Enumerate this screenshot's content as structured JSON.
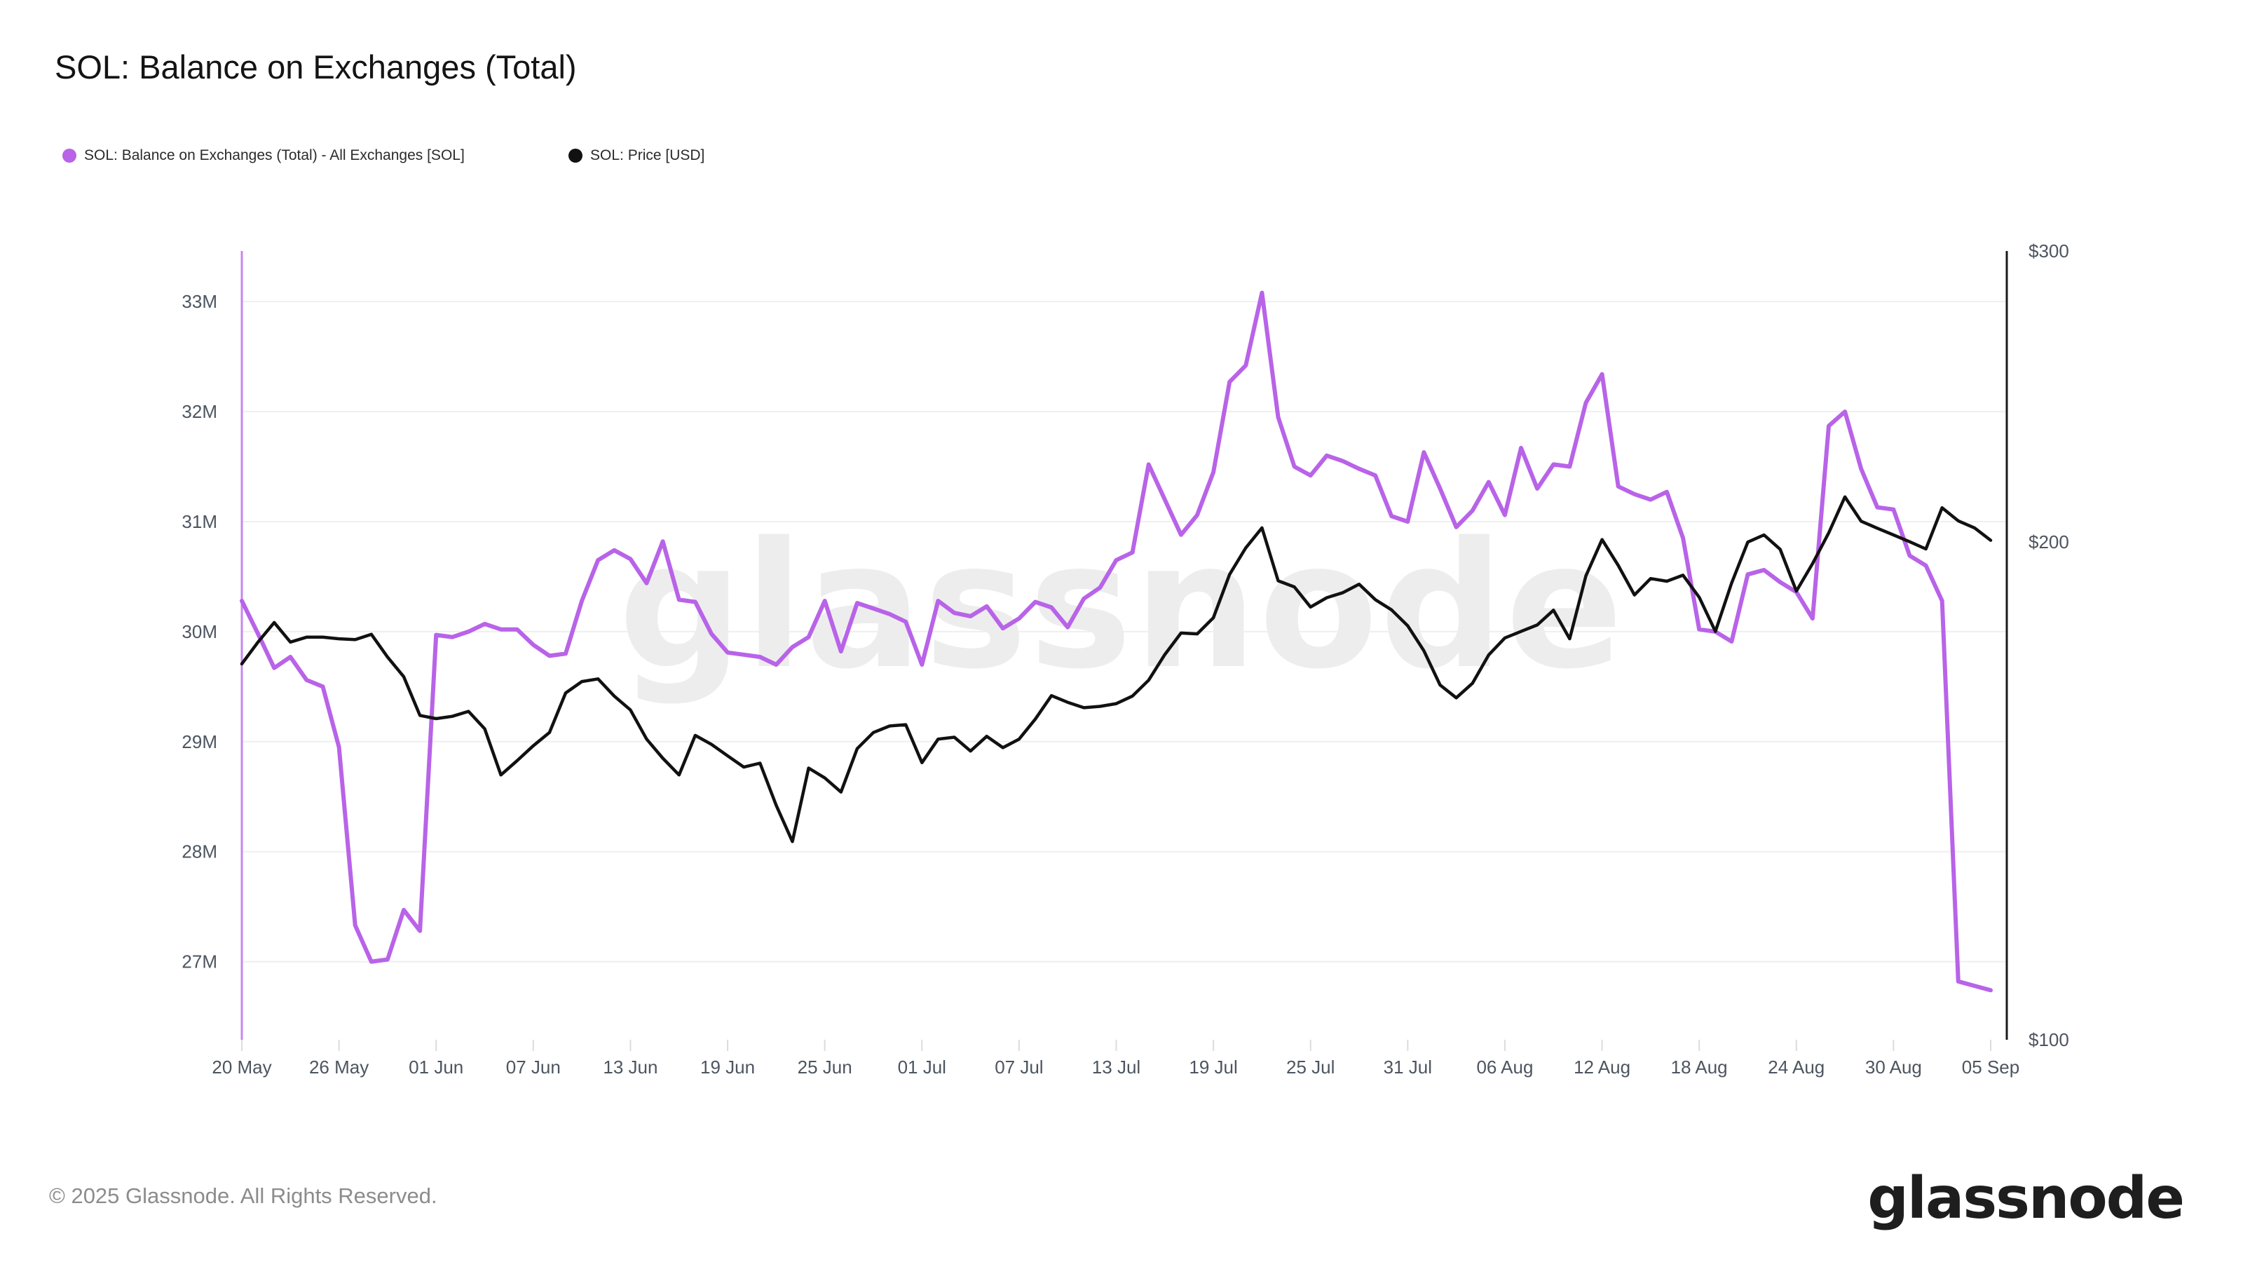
{
  "title": "SOL: Balance on Exchanges (Total)",
  "legend": {
    "items": [
      {
        "label": "SOL: Balance on Exchanges (Total) - All Exchanges [SOL]",
        "color": "#b863e8"
      },
      {
        "label": "SOL: Price [USD]",
        "color": "#111111"
      }
    ]
  },
  "watermark": "glassnode",
  "footer": {
    "copyright": "© 2025 Glassnode. All Rights Reserved.",
    "logo": "glassnode"
  },
  "colors": {
    "balance_line": "#b863e8",
    "price_line": "#111111",
    "grid": "#efefef",
    "tick": "#dcdcdc",
    "axis_text": "#4c5560",
    "watermark": "#ededed",
    "left_spine": "#c687ef",
    "right_spine": "#1a1a1a"
  },
  "chart_data": {
    "type": "line",
    "title": "SOL: Balance on Exchanges (Total)",
    "legend_position": "top-left",
    "grid": "horizontal",
    "x_axis": {
      "start_date": "2025-05-20",
      "end_date": "2025-09-05",
      "interval": "1 day",
      "total_days": 108,
      "ticks": [
        {
          "day": 0,
          "label": "20 May"
        },
        {
          "day": 6,
          "label": "26 May"
        },
        {
          "day": 12,
          "label": "01 Jun"
        },
        {
          "day": 18,
          "label": "07 Jun"
        },
        {
          "day": 24,
          "label": "13 Jun"
        },
        {
          "day": 30,
          "label": "19 Jun"
        },
        {
          "day": 36,
          "label": "25 Jun"
        },
        {
          "day": 42,
          "label": "01 Jul"
        },
        {
          "day": 48,
          "label": "07 Jul"
        },
        {
          "day": 54,
          "label": "13 Jul"
        },
        {
          "day": 60,
          "label": "19 Jul"
        },
        {
          "day": 66,
          "label": "25 Jul"
        },
        {
          "day": 72,
          "label": "31 Jul"
        },
        {
          "day": 78,
          "label": "06 Aug"
        },
        {
          "day": 84,
          "label": "12 Aug"
        },
        {
          "day": 90,
          "label": "18 Aug"
        },
        {
          "day": 96,
          "label": "24 Aug"
        },
        {
          "day": 102,
          "label": "30 Aug"
        },
        {
          "day": 108,
          "label": "05 Sep"
        }
      ]
    },
    "left_axis": {
      "scale": "linear",
      "unit": "SOL (millions)",
      "min": 26.29,
      "max": 33.46,
      "ticks": [
        {
          "value": 27,
          "label": "27M"
        },
        {
          "value": 28,
          "label": "28M"
        },
        {
          "value": 29,
          "label": "29M"
        },
        {
          "value": 30,
          "label": "30M"
        },
        {
          "value": 31,
          "label": "31M"
        },
        {
          "value": 32,
          "label": "32M"
        },
        {
          "value": 33,
          "label": "33M"
        }
      ]
    },
    "right_axis": {
      "scale": "log",
      "unit": "USD",
      "min": 100,
      "max": 300,
      "ticks": [
        {
          "value": 100,
          "label": "$100"
        },
        {
          "value": 200,
          "label": "$200"
        },
        {
          "value": 300,
          "label": "$300"
        }
      ]
    },
    "series": [
      {
        "name": "SOL: Balance on Exchanges (Total) - All Exchanges [SOL]",
        "axis": "left",
        "color": "#b863e8",
        "unit": "millions of SOL",
        "values": [
          30.28,
          29.98,
          29.67,
          29.77,
          29.56,
          29.5,
          28.95,
          27.33,
          27.0,
          27.02,
          27.47,
          27.28,
          29.97,
          29.95,
          30.0,
          30.07,
          30.02,
          30.02,
          29.88,
          29.78,
          29.8,
          30.28,
          30.65,
          30.74,
          30.66,
          30.44,
          30.82,
          30.29,
          30.27,
          29.98,
          29.81,
          29.79,
          29.77,
          29.7,
          29.86,
          29.95,
          30.28,
          29.82,
          30.26,
          30.21,
          30.16,
          30.09,
          29.7,
          30.28,
          30.17,
          30.14,
          30.23,
          30.03,
          30.12,
          30.27,
          30.22,
          30.04,
          30.3,
          30.4,
          30.65,
          30.72,
          31.52,
          31.2,
          30.88,
          31.06,
          31.45,
          32.27,
          32.42,
          33.08,
          31.95,
          31.5,
          31.42,
          31.6,
          31.55,
          31.48,
          31.42,
          31.05,
          31.0,
          31.63,
          31.3,
          30.95,
          31.1,
          31.36,
          31.06,
          31.67,
          31.3,
          31.52,
          31.5,
          32.08,
          32.34,
          31.32,
          31.25,
          31.2,
          31.27,
          30.85,
          30.02,
          30.0,
          29.91,
          30.52,
          30.56,
          30.45,
          30.36,
          30.12,
          31.87,
          32.0,
          31.48,
          31.13,
          31.11,
          30.69,
          30.6,
          30.28,
          26.82,
          26.78,
          26.74
        ]
      },
      {
        "name": "SOL: Price [USD]",
        "axis": "right",
        "color": "#111111",
        "unit": "USD",
        "values": [
          168.8,
          174.0,
          178.8,
          174.0,
          175.2,
          175.2,
          174.8,
          174.6,
          175.9,
          170.4,
          165.8,
          157.1,
          156.4,
          156.9,
          158.0,
          154.2,
          144.6,
          147.5,
          150.6,
          153.4,
          162.1,
          164.7,
          165.3,
          161.4,
          158.3,
          152.0,
          148.0,
          144.6,
          152.8,
          150.9,
          148.5,
          146.2,
          147.0,
          138.6,
          131.8,
          146.0,
          144.0,
          141.2,
          150.0,
          153.4,
          154.8,
          155.1,
          147.1,
          152.0,
          152.4,
          149.5,
          152.6,
          150.2,
          152.0,
          156.3,
          161.5,
          160.0,
          158.8,
          159.1,
          159.7,
          161.4,
          165.0,
          171.0,
          176.2,
          176.0,
          180.0,
          191.2,
          198.4,
          204.0,
          189.5,
          187.9,
          182.7,
          185.1,
          186.4,
          188.6,
          184.6,
          182.0,
          178.0,
          171.9,
          163.9,
          161.0,
          164.3,
          170.9,
          175.0,
          176.6,
          178.2,
          181.9,
          174.8,
          190.8,
          200.7,
          193.6,
          185.8,
          190.1,
          189.4,
          191.0,
          185.2,
          176.6,
          188.9,
          200.0,
          202.0,
          198.0,
          186.8,
          194.1,
          202.6,
          213.0,
          205.9,
          203.9,
          202.0,
          200.1,
          198.1,
          209.8,
          206.0,
          204.0,
          200.5
        ]
      }
    ]
  }
}
